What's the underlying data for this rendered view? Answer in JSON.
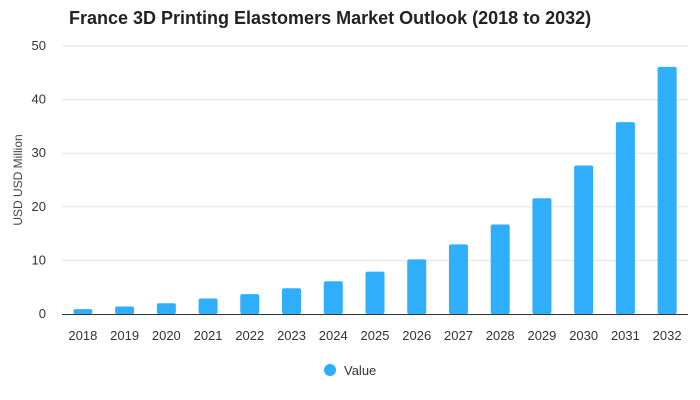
{
  "chart_data": {
    "type": "bar",
    "title": "France 3D Printing Elastomers Market Outlook (2018 to 2032)",
    "xlabel": "",
    "ylabel": "USD USD Million",
    "categories": [
      "2018",
      "2019",
      "2020",
      "2021",
      "2022",
      "2023",
      "2024",
      "2025",
      "2026",
      "2027",
      "2028",
      "2029",
      "2030",
      "2031",
      "2032"
    ],
    "series": [
      {
        "name": "Value",
        "values": [
          0.9,
          1.4,
          2.0,
          2.9,
          3.7,
          4.8,
          6.1,
          7.9,
          10.2,
          13.0,
          16.7,
          21.6,
          27.7,
          35.8,
          46.1
        ]
      }
    ],
    "ylim": [
      0,
      50
    ],
    "yticks": [
      0,
      10,
      20,
      30,
      40,
      50
    ],
    "grid": true,
    "legend_position": "bottom",
    "colors": {
      "bar": "#2eaefb",
      "grid": "#e3e3e3",
      "axis": "#333333"
    }
  }
}
